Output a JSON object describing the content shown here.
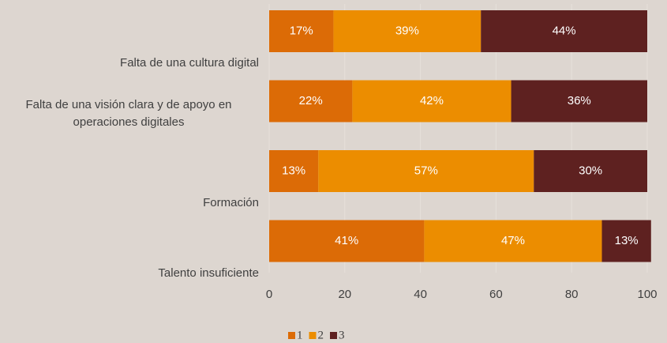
{
  "chart_data": {
    "type": "stacked-bar-horizontal",
    "categories": [
      "Falta de una cultura digital",
      "Falta de una visión clara y de apoyo en operaciones digitales",
      "Formación",
      "Talento insuficiente"
    ],
    "series": [
      {
        "name": "1",
        "color": "#dc6b06",
        "values": [
          17,
          22,
          13,
          41
        ],
        "value_labels": [
          "17%",
          "22%",
          "13%",
          "41%"
        ]
      },
      {
        "name": "2",
        "color": "#ec8d00",
        "values": [
          39,
          42,
          57,
          47
        ],
        "value_labels": [
          "39%",
          "42%",
          "57%",
          "47%"
        ]
      },
      {
        "name": "3",
        "color": "#5e2120",
        "values": [
          44,
          36,
          30,
          13
        ],
        "value_labels": [
          "44%",
          "36%",
          "30%",
          "13%"
        ]
      }
    ],
    "xlim": [
      0,
      100
    ],
    "xticks": [
      0,
      20,
      40,
      60,
      80,
      100
    ],
    "grid": true,
    "legend": "bottom"
  }
}
